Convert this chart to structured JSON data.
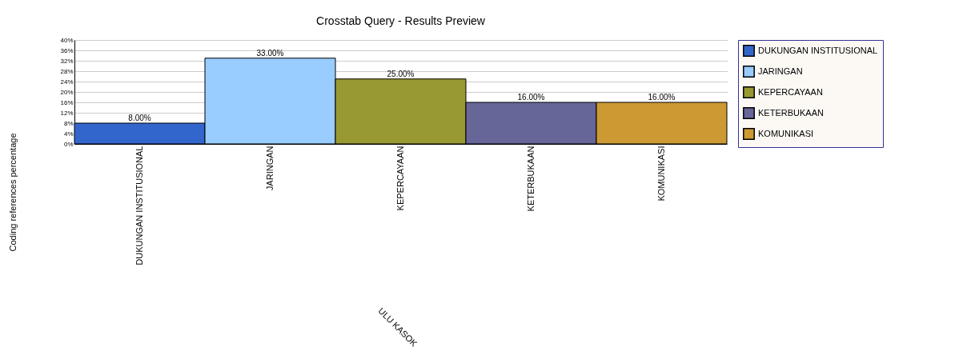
{
  "chart_data": {
    "type": "bar",
    "title": "Crosstab Query - Results Preview",
    "xlabel": "ULU KASOK",
    "ylabel": "Coding references percentage",
    "categories": [
      "DUKUNGAN INSTITUSIONAL",
      "JARINGAN",
      "KEPERCAYAAN",
      "KETERBUKAAN",
      "KOMUNIKASI"
    ],
    "series": [
      {
        "name": "DUKUNGAN INSTITUSIONAL",
        "color": "#3366cc",
        "values": [
          8,
          null,
          null,
          null,
          null
        ]
      },
      {
        "name": "JARINGAN",
        "color": "#99ccff",
        "values": [
          null,
          33,
          null,
          null,
          null
        ]
      },
      {
        "name": "KEPERCAYAAN",
        "color": "#999933",
        "values": [
          null,
          null,
          25,
          null,
          null
        ]
      },
      {
        "name": "KETERBUKAAN",
        "color": "#666699",
        "values": [
          null,
          null,
          null,
          16,
          null
        ]
      },
      {
        "name": "KOMUNIKASI",
        "color": "#cc9933",
        "values": [
          null,
          null,
          null,
          null,
          16
        ]
      }
    ],
    "value_labels": [
      "8.00%",
      "33.00%",
      "25.00%",
      "16.00%",
      "16.00%"
    ],
    "ylim": [
      0,
      40
    ],
    "yticks": [
      {
        "value": 0,
        "label": "0%"
      },
      {
        "value": 4,
        "label": "4%"
      },
      {
        "value": 8,
        "label": "8%"
      },
      {
        "value": 12,
        "label": "12%"
      },
      {
        "value": 16,
        "label": "16%"
      },
      {
        "value": 20,
        "label": "20%"
      },
      {
        "value": 24,
        "label": "24%"
      },
      {
        "value": 28,
        "label": "28%"
      },
      {
        "value": 32,
        "label": "32%"
      },
      {
        "value": 36,
        "label": "36%"
      },
      {
        "value": 40,
        "label": "40%"
      }
    ],
    "grid": "y",
    "legend": "top right"
  }
}
